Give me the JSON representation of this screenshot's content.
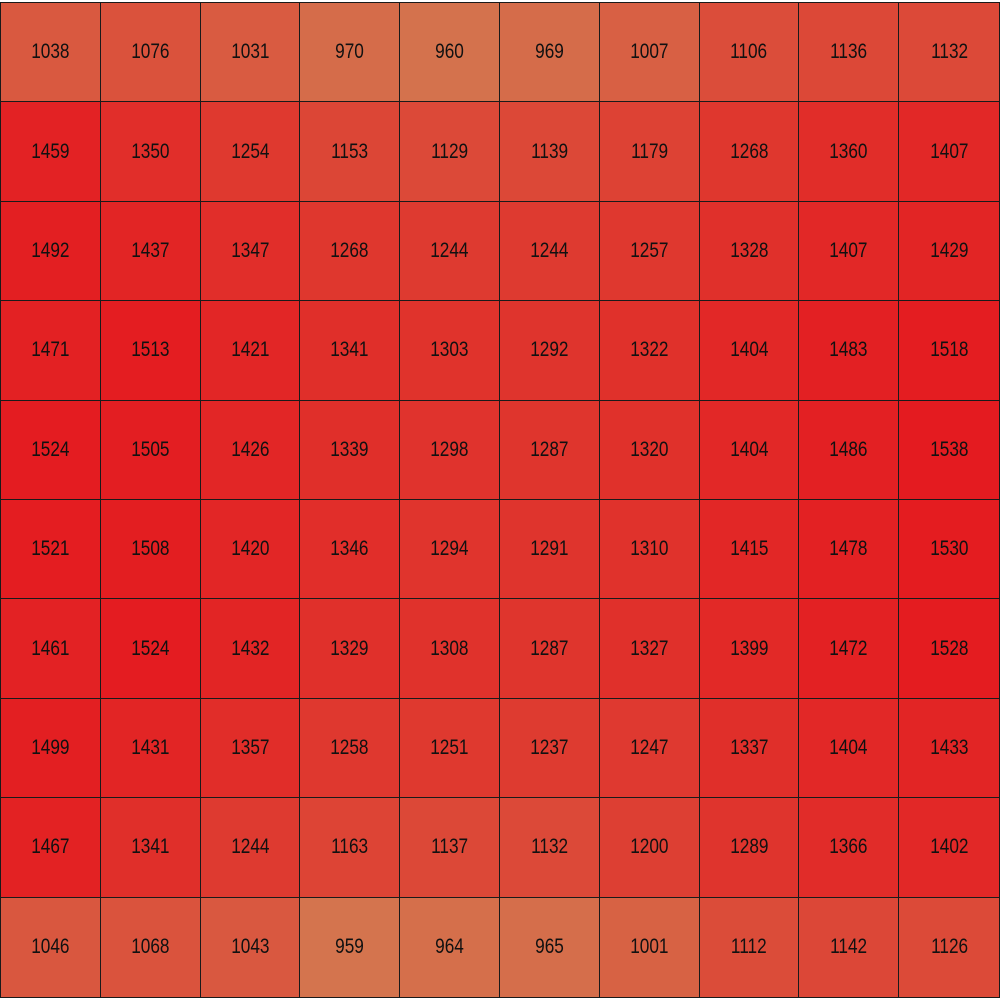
{
  "chart_data": {
    "type": "heatmap",
    "rows": 10,
    "cols": 10,
    "values": [
      [
        1038,
        1076,
        1031,
        970,
        960,
        969,
        1007,
        1106,
        1136,
        1132
      ],
      [
        1459,
        1350,
        1254,
        1153,
        1129,
        1139,
        1179,
        1268,
        1360,
        1407
      ],
      [
        1492,
        1437,
        1347,
        1268,
        1244,
        1244,
        1257,
        1328,
        1407,
        1429
      ],
      [
        1471,
        1513,
        1421,
        1341,
        1303,
        1292,
        1322,
        1404,
        1483,
        1518
      ],
      [
        1524,
        1505,
        1426,
        1339,
        1298,
        1287,
        1320,
        1404,
        1486,
        1538
      ],
      [
        1521,
        1508,
        1420,
        1346,
        1294,
        1291,
        1310,
        1415,
        1478,
        1530
      ],
      [
        1461,
        1524,
        1432,
        1329,
        1308,
        1287,
        1327,
        1399,
        1472,
        1528
      ],
      [
        1499,
        1431,
        1357,
        1258,
        1251,
        1237,
        1247,
        1337,
        1404,
        1433
      ],
      [
        1467,
        1341,
        1244,
        1163,
        1137,
        1132,
        1200,
        1289,
        1366,
        1402
      ],
      [
        1046,
        1068,
        1043,
        959,
        964,
        965,
        1001,
        1112,
        1142,
        1126
      ]
    ],
    "color_scale": {
      "low": "#d4744e",
      "high": "#e41b20"
    },
    "value_range": [
      959,
      1538
    ],
    "grid": true,
    "title": "",
    "xlabel": "",
    "ylabel": ""
  }
}
